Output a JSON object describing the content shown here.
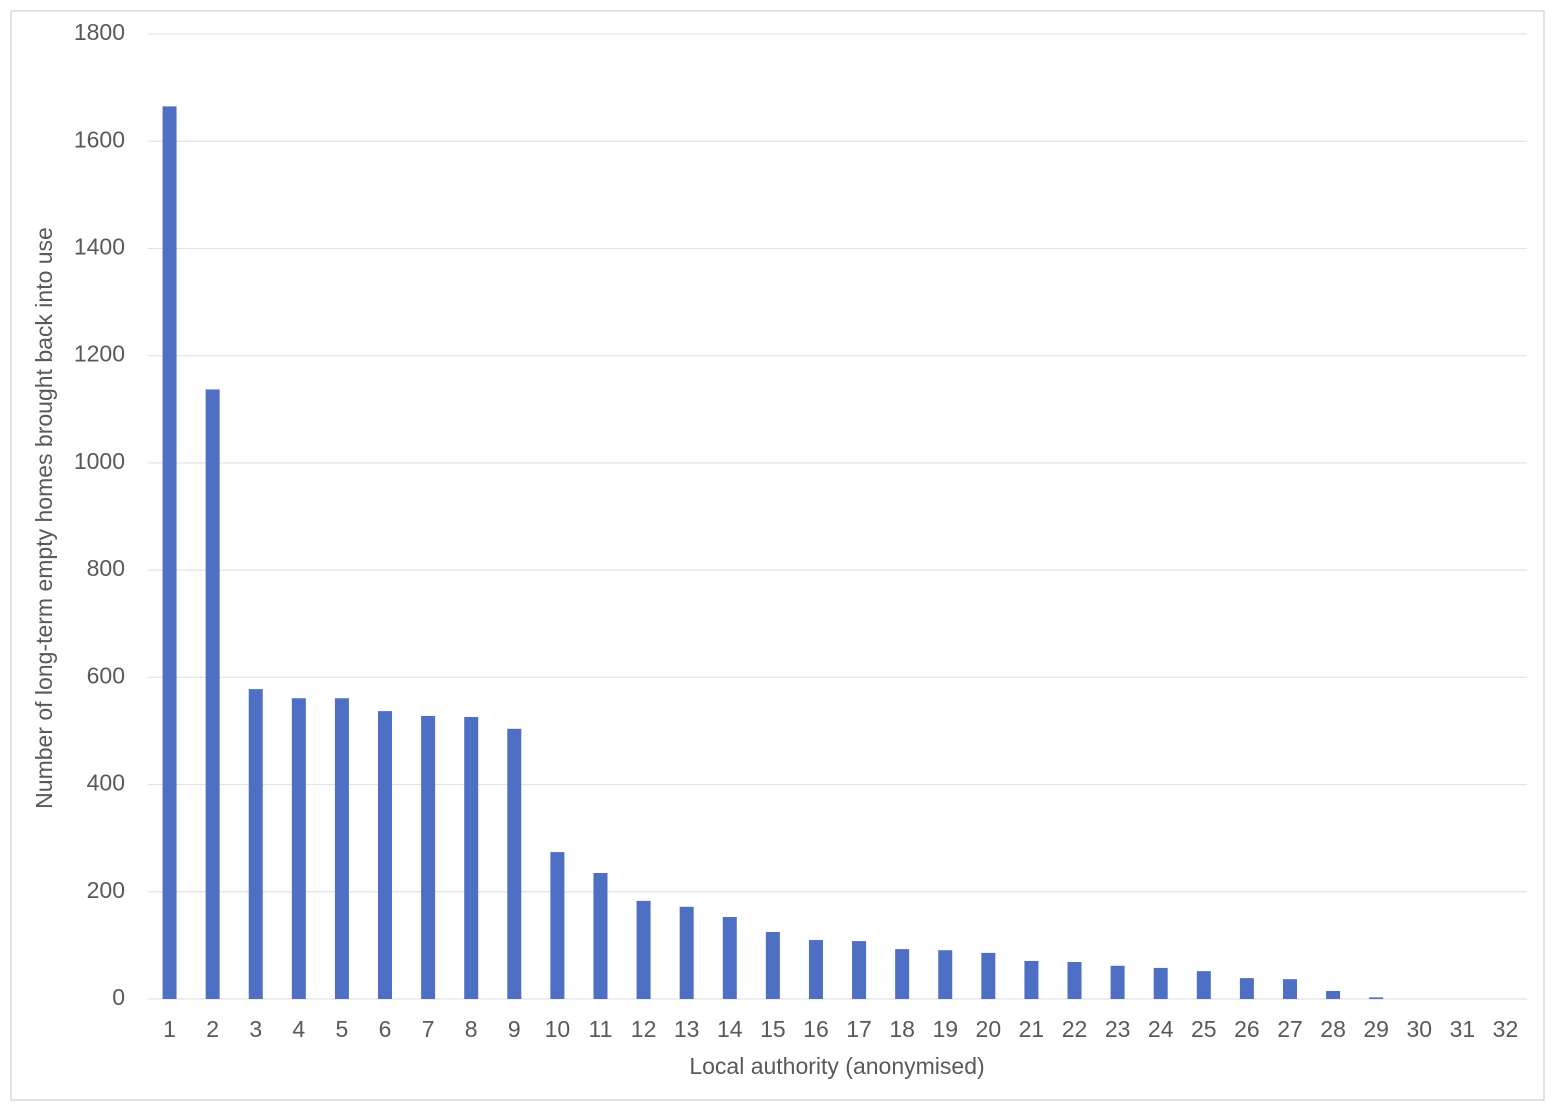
{
  "chart_data": {
    "type": "bar",
    "x_label": "Local authority (anonymised)",
    "y_label": "Number of long-term empty homes brought back into use",
    "categories": [
      "1",
      "2",
      "3",
      "4",
      "5",
      "6",
      "7",
      "8",
      "9",
      "10",
      "11",
      "12",
      "13",
      "14",
      "15",
      "16",
      "17",
      "18",
      "19",
      "20",
      "21",
      "22",
      "23",
      "24",
      "25",
      "26",
      "27",
      "28",
      "29",
      "30",
      "31",
      "32"
    ],
    "values": [
      1665,
      1137,
      578,
      561,
      561,
      537,
      528,
      526,
      504,
      274,
      235,
      183,
      172,
      153,
      125,
      110,
      108,
      93,
      91,
      86,
      71,
      69,
      62,
      58,
      52,
      39,
      37,
      15,
      3,
      0,
      0,
      0
    ],
    "color": "#4f6fc4",
    "ylim": [
      0,
      1800
    ],
    "yticks": [
      0,
      200,
      400,
      600,
      800,
      1000,
      1200,
      1400,
      1600,
      1800
    ],
    "grid": true
  }
}
